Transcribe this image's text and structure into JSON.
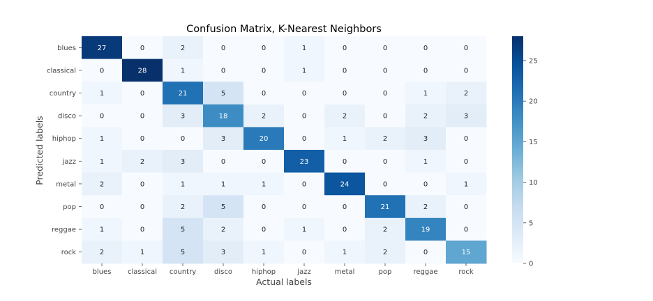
{
  "chart_data": {
    "type": "heatmap",
    "title": "Confusion Matrix, K-Nearest Neighbors",
    "xlabel": "Actual labels",
    "ylabel": "Predicted labels",
    "x_categories": [
      "blues",
      "classical",
      "country",
      "disco",
      "hiphop",
      "jazz",
      "metal",
      "pop",
      "reggae",
      "rock"
    ],
    "y_categories": [
      "blues",
      "classical",
      "country",
      "disco",
      "hiphop",
      "jazz",
      "metal",
      "pop",
      "reggae",
      "rock"
    ],
    "values": [
      [
        27,
        0,
        2,
        0,
        0,
        1,
        0,
        0,
        0,
        0
      ],
      [
        0,
        28,
        1,
        0,
        0,
        1,
        0,
        0,
        0,
        0
      ],
      [
        1,
        0,
        21,
        5,
        0,
        0,
        0,
        0,
        1,
        2
      ],
      [
        0,
        0,
        3,
        18,
        2,
        0,
        2,
        0,
        2,
        3
      ],
      [
        1,
        0,
        0,
        3,
        20,
        0,
        1,
        2,
        3,
        0
      ],
      [
        1,
        2,
        3,
        0,
        0,
        23,
        0,
        0,
        1,
        0
      ],
      [
        2,
        0,
        1,
        1,
        1,
        0,
        24,
        0,
        0,
        1
      ],
      [
        0,
        0,
        2,
        5,
        0,
        0,
        0,
        21,
        2,
        0
      ],
      [
        1,
        0,
        5,
        2,
        0,
        1,
        0,
        2,
        19,
        0
      ],
      [
        2,
        1,
        5,
        3,
        1,
        0,
        1,
        2,
        0,
        15
      ]
    ],
    "colormap": "Blues",
    "colorbar": {
      "range": [
        0,
        28
      ],
      "ticks": [
        0,
        5,
        10,
        15,
        20,
        25
      ]
    },
    "grid": false
  }
}
